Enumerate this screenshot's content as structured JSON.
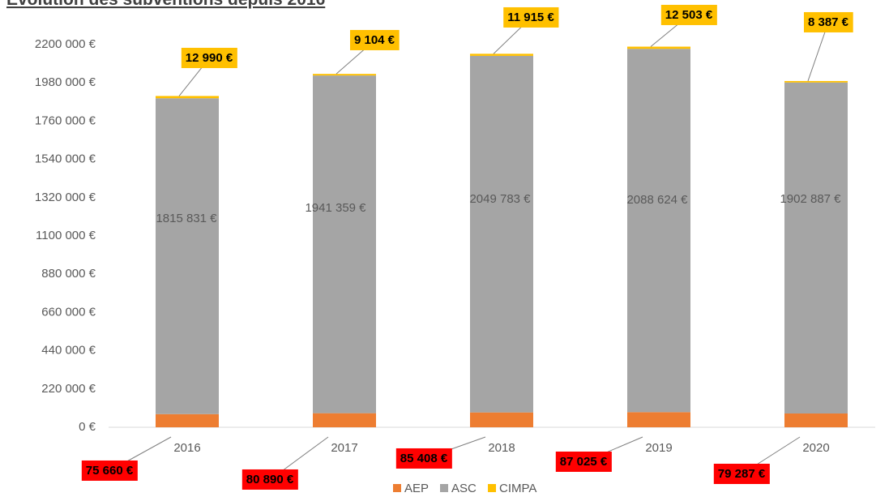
{
  "chart_data": {
    "type": "stacked_bar",
    "title": "Évolution des subventions depuis 2016",
    "categories": [
      "2016",
      "2017",
      "2018",
      "2019",
      "2020"
    ],
    "series": [
      {
        "name": "AEP",
        "color": "#ed7d31",
        "label_color": "#ff0000",
        "values": [
          75660,
          80890,
          85408,
          87025,
          79287
        ],
        "value_labels": [
          "75 660 €",
          "80 890 €",
          "85 408 €",
          "87 025 €",
          "79 287 €"
        ]
      },
      {
        "name": "ASC",
        "color": "#a5a5a5",
        "values": [
          1815831,
          1941359,
          2049783,
          2088624,
          1902887
        ],
        "value_labels": [
          "1815 831 €",
          "1941 359 €",
          "2049 783 €",
          "2088 624 €",
          "1902 887 €"
        ]
      },
      {
        "name": "CIMPA",
        "color": "#ffc000",
        "label_color": "#ffc000",
        "values": [
          12990,
          9104,
          11915,
          12503,
          8387
        ],
        "value_labels": [
          "12 990 €",
          "9 104 €",
          "11 915 €",
          "12 503 €",
          "8 387 €"
        ]
      }
    ],
    "ylim": [
      0,
      2200000
    ],
    "yticks": [
      {
        "value": 0,
        "label": "0 €"
      },
      {
        "value": 220000,
        "label": "220 000 €"
      },
      {
        "value": 440000,
        "label": "440 000 €"
      },
      {
        "value": 660000,
        "label": "660 000 €"
      },
      {
        "value": 880000,
        "label": "880 000 €"
      },
      {
        "value": 1100000,
        "label": "1100 000 €"
      },
      {
        "value": 1320000,
        "label": "1320 000 €"
      },
      {
        "value": 1540000,
        "label": "1540 000 €"
      },
      {
        "value": 1760000,
        "label": "1760 000 €"
      },
      {
        "value": 1980000,
        "label": "1980 000 €"
      },
      {
        "value": 2200000,
        "label": "2200 000 €"
      }
    ],
    "grid": false,
    "legend": "bottom"
  }
}
